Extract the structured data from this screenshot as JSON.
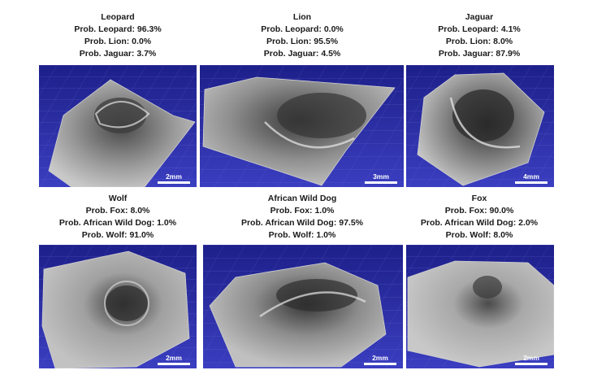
{
  "panels": [
    {
      "title": "Leopard",
      "lines": [
        "Prob. Leopard: 96.3%",
        "Prob. Lion: 0.0%",
        "Prob. Jaguar: 3.7%"
      ],
      "scale": "2mm"
    },
    {
      "title": "Lion",
      "lines": [
        "Prob. Leopard: 0.0%",
        "Prob. Lion: 95.5%",
        "Prob. Jaguar: 4.5%"
      ],
      "scale": "3mm"
    },
    {
      "title": "Jaguar",
      "lines": [
        "Prob. Leopard: 4.1%",
        "Prob. Lion: 8.0%",
        "Prob. Jaguar: 87.9%"
      ],
      "scale": "4mm"
    },
    {
      "title": "Wolf",
      "lines": [
        "Prob. Fox: 8.0%",
        "Prob. African Wild Dog: 1.0%",
        "Prob. Wolf: 91.0%"
      ],
      "scale": "2mm"
    },
    {
      "title": "African Wild Dog",
      "lines": [
        "Prob. Fox: 1.0%",
        "Prob. African Wild Dog: 97.5%",
        "Prob. Wolf: 1.0%"
      ],
      "scale": "2mm"
    },
    {
      "title": "Fox",
      "lines": [
        "Prob. Fox: 90.0%",
        "Prob. African Wild Dog: 2.0%",
        "Prob. Wolf: 8.0%"
      ],
      "scale": "2mm"
    }
  ]
}
